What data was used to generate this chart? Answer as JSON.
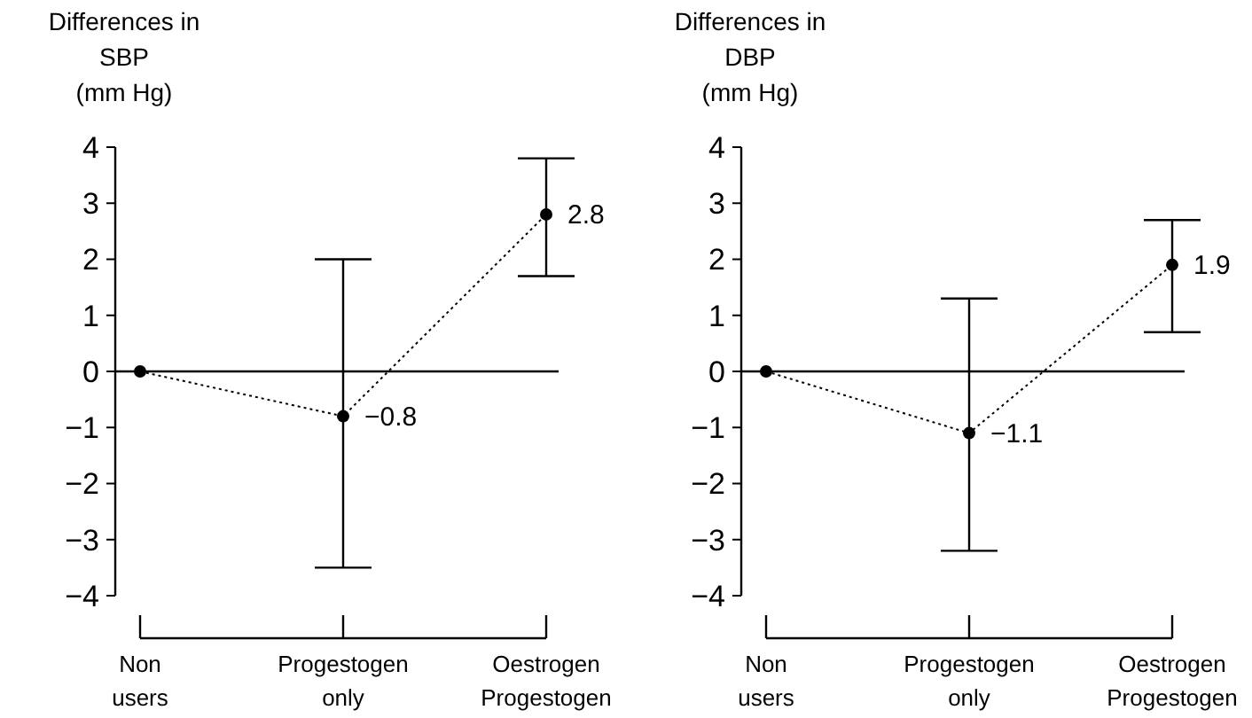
{
  "chart_data": [
    {
      "type": "line",
      "ylabel": "Differences in\nSBP\n(mm Hg)",
      "categories": [
        "Non\nusers",
        "Progestogen\nonly",
        "Oestrogen\nProgestogen"
      ],
      "series": [
        {
          "color": "#000000",
          "values": [
            0,
            -0.8,
            2.8
          ],
          "errors": [
            null,
            [
              -3.5,
              2.0
            ],
            [
              1.7,
              3.8
            ]
          ],
          "value_labels": [
            null,
            "−0.8",
            "2.8"
          ]
        }
      ],
      "marker": "circle",
      "line_style": "dotted",
      "ylim": [
        -4,
        4
      ],
      "yticks": [
        {
          "value": -4,
          "label": "−4"
        },
        {
          "value": -3,
          "label": "−3"
        },
        {
          "value": -2,
          "label": "−2"
        },
        {
          "value": -1,
          "label": "−1"
        },
        0,
        1,
        2,
        3,
        4
      ],
      "ref_lines": [
        {
          "axis": "y",
          "value": 0,
          "color": "#000000"
        }
      ],
      "grid": false
    },
    {
      "type": "line",
      "ylabel": "Differences in\nDBP\n(mm Hg)",
      "categories": [
        "Non\nusers",
        "Progestogen\nonly",
        "Oestrogen\nProgestogen"
      ],
      "series": [
        {
          "color": "#000000",
          "values": [
            0,
            -1.1,
            1.9
          ],
          "errors": [
            null,
            [
              -3.2,
              1.3
            ],
            [
              0.7,
              2.7
            ]
          ],
          "value_labels": [
            null,
            "−1.1",
            "1.9"
          ]
        }
      ],
      "marker": "circle",
      "line_style": "dotted",
      "ylim": [
        -4,
        4
      ],
      "yticks": [
        {
          "value": -4,
          "label": "−4"
        },
        {
          "value": -3,
          "label": "−3"
        },
        {
          "value": -2,
          "label": "−2"
        },
        {
          "value": -1,
          "label": "−1"
        },
        0,
        1,
        2,
        3,
        4
      ],
      "ref_lines": [
        {
          "axis": "y",
          "value": 0,
          "color": "#000000"
        }
      ],
      "grid": false
    }
  ]
}
